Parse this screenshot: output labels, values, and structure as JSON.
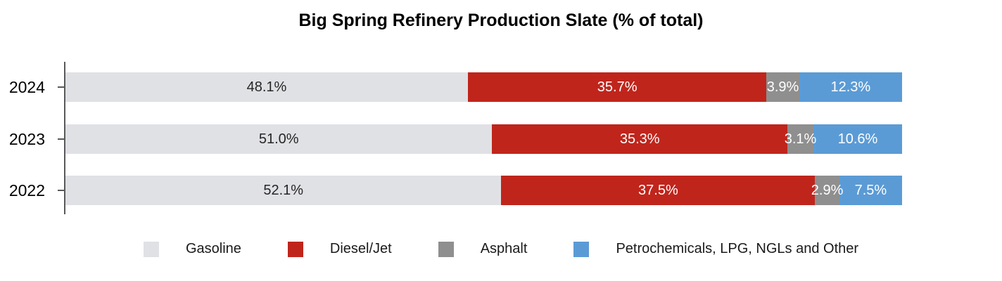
{
  "title": "Big Spring Refinery Production Slate (% of total)",
  "chart_data": {
    "type": "bar",
    "orientation": "horizontal",
    "stacked": true,
    "title": "Big Spring Refinery Production Slate (% of total)",
    "categories": [
      "2024",
      "2023",
      "2022"
    ],
    "series": [
      {
        "name": "Gasoline",
        "color": "#e0e1e5",
        "label_color": "#262626",
        "values": [
          48.1,
          51.0,
          52.1
        ],
        "labels": [
          "48.1%",
          "51.0%",
          "52.1%"
        ]
      },
      {
        "name": "Diesel/Jet",
        "color": "#c0251c",
        "label_color": "#ffffff",
        "values": [
          35.7,
          35.3,
          37.5
        ],
        "labels": [
          "35.7%",
          "35.3%",
          "37.5%"
        ]
      },
      {
        "name": "Asphalt",
        "color": "#8f8f8f",
        "label_color": "#ffffff",
        "values": [
          3.9,
          3.1,
          2.9
        ],
        "labels": [
          "3.9%",
          "3.1%",
          "2.9%"
        ]
      },
      {
        "name": "Petrochemicals, LPG, NGLs and Other",
        "color": "#5b9bd5",
        "label_color": "#ffffff",
        "values": [
          12.3,
          10.6,
          7.5
        ],
        "labels": [
          "12.3%",
          "10.6%",
          "7.5%"
        ]
      }
    ],
    "value_suffix": "%",
    "xlim": [
      0,
      100
    ],
    "grid": false,
    "legend_position": "bottom",
    "axis_color": "#595959"
  }
}
